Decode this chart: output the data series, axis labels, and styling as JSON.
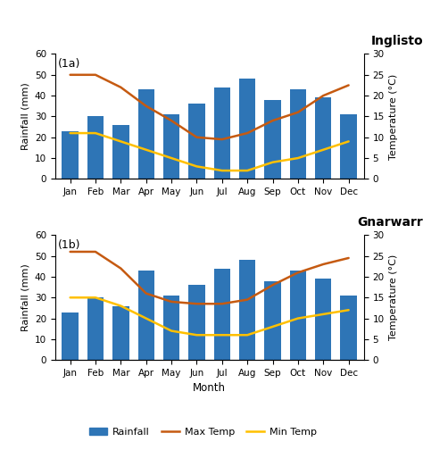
{
  "months": [
    "Jan",
    "Feb",
    "Mar",
    "Apr",
    "May",
    "Jun",
    "Jul",
    "Aug",
    "Sep",
    "Oct",
    "Nov",
    "Dec"
  ],
  "ingliston": {
    "label": "Ingliston",
    "rainfall": [
      23,
      30,
      26,
      43,
      31,
      36,
      44,
      48,
      38,
      43,
      39,
      31
    ],
    "max_temp": [
      25,
      25,
      22,
      17.5,
      14,
      10,
      9.5,
      11,
      14,
      16,
      20,
      22.5
    ],
    "min_temp": [
      11,
      11,
      9,
      7,
      5,
      3,
      2,
      2,
      4,
      5,
      7,
      9
    ]
  },
  "gnarwarre": {
    "label": "Gnarwarre",
    "rainfall": [
      23,
      30,
      26,
      43,
      31,
      36,
      44,
      48,
      38,
      43,
      39,
      31
    ],
    "max_temp": [
      26,
      26,
      22,
      16,
      14,
      13.5,
      13.5,
      14.5,
      18,
      21,
      23,
      24.5
    ],
    "min_temp": [
      15,
      15,
      13,
      10,
      7,
      6,
      6,
      6,
      8,
      10,
      11,
      12
    ]
  },
  "bar_color": "#2e75b6",
  "max_temp_color": "#c55a11",
  "min_temp_color": "#ffc000",
  "rainfall_ylim": [
    0,
    60
  ],
  "temp_ylim": [
    0,
    30
  ],
  "temp_yticks": [
    0,
    5,
    10,
    15,
    20,
    25,
    30
  ],
  "rainfall_yticks": [
    0,
    10,
    20,
    30,
    40,
    50,
    60
  ]
}
